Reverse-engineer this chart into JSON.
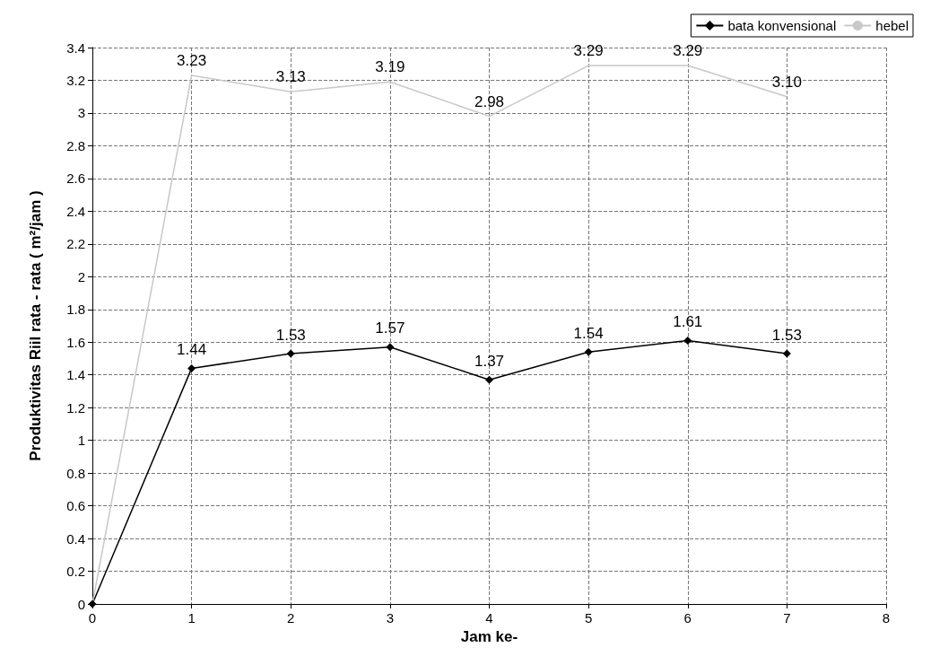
{
  "chart_data": {
    "type": "line",
    "xlabel": "Jam ke-",
    "ylabel": "Produktivitas Riil rata - rata ( m²/jam )",
    "x": [
      0,
      1,
      2,
      3,
      4,
      5,
      6,
      7
    ],
    "series": [
      {
        "name": "bata konvensional",
        "color": "#000000",
        "marker": "diamond",
        "values": [
          0,
          1.44,
          1.53,
          1.57,
          1.37,
          1.54,
          1.61,
          1.53
        ],
        "value_labels": [
          null,
          "1.44",
          "1.53",
          "1.57",
          "1.37",
          "1.54",
          "1.61",
          "1.53"
        ]
      },
      {
        "name": "hebel",
        "color": "#c8c8c8",
        "marker": "none",
        "values": [
          0,
          3.23,
          3.13,
          3.19,
          2.98,
          3.29,
          3.29,
          3.1
        ],
        "value_labels": [
          null,
          "3.23",
          "3.13",
          "3.19",
          "2.98",
          "3.29",
          "3.29",
          "3.10"
        ]
      }
    ],
    "xlim": [
      0,
      8
    ],
    "xticks": [
      0,
      1,
      2,
      3,
      4,
      5,
      6,
      7,
      8
    ],
    "ylim": [
      0,
      3.4
    ],
    "yticks": [
      0,
      0.2,
      0.4,
      0.6,
      0.8,
      1,
      1.2,
      1.4,
      1.6,
      1.8,
      2,
      2.2,
      2.4,
      2.6,
      2.8,
      3,
      3.2,
      3.4
    ],
    "grid": true,
    "legend": "top right",
    "line_style": "solid"
  }
}
